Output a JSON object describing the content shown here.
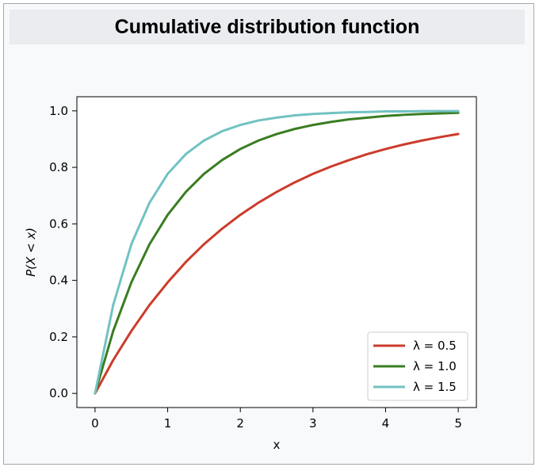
{
  "page": {
    "title": "Cumulative distribution function"
  },
  "chart_data": {
    "type": "line",
    "title": "",
    "xlabel": "x",
    "ylabel": "P(X < x)",
    "xlim": [
      -0.25,
      5.25
    ],
    "ylim": [
      -0.05,
      1.05
    ],
    "xticks": [
      0,
      1,
      2,
      3,
      4,
      5
    ],
    "yticks": [
      0.0,
      0.2,
      0.4,
      0.6,
      0.8,
      1.0
    ],
    "xtick_labels": [
      "0",
      "1",
      "2",
      "3",
      "4",
      "5"
    ],
    "ytick_labels": [
      "0.0",
      "0.2",
      "0.4",
      "0.6",
      "0.8",
      "1.0"
    ],
    "grid": false,
    "legend_position": "lower-right",
    "x": [
      0,
      0.25,
      0.5,
      0.75,
      1,
      1.25,
      1.5,
      1.75,
      2,
      2.25,
      2.5,
      2.75,
      3,
      3.25,
      3.5,
      3.75,
      4,
      4.25,
      4.5,
      4.75,
      5
    ],
    "series": [
      {
        "name": "λ = 0.5",
        "color": "#cc3b2b",
        "values": [
          0,
          0.118,
          0.221,
          0.313,
          0.393,
          0.465,
          0.528,
          0.583,
          0.632,
          0.675,
          0.713,
          0.747,
          0.777,
          0.803,
          0.826,
          0.847,
          0.865,
          0.881,
          0.895,
          0.907,
          0.918
        ]
      },
      {
        "name": "λ = 1.0",
        "color": "#3a7d22",
        "values": [
          0,
          0.221,
          0.393,
          0.528,
          0.632,
          0.713,
          0.777,
          0.826,
          0.865,
          0.895,
          0.918,
          0.936,
          0.95,
          0.961,
          0.97,
          0.976,
          0.982,
          0.986,
          0.989,
          0.991,
          0.993
        ]
      },
      {
        "name": "λ = 1.5",
        "color": "#72c2c2",
        "values": [
          0,
          0.313,
          0.528,
          0.675,
          0.777,
          0.847,
          0.895,
          0.928,
          0.95,
          0.966,
          0.976,
          0.984,
          0.989,
          0.992,
          0.995,
          0.996,
          0.998,
          0.998,
          0.999,
          0.999,
          0.999
        ]
      }
    ]
  }
}
